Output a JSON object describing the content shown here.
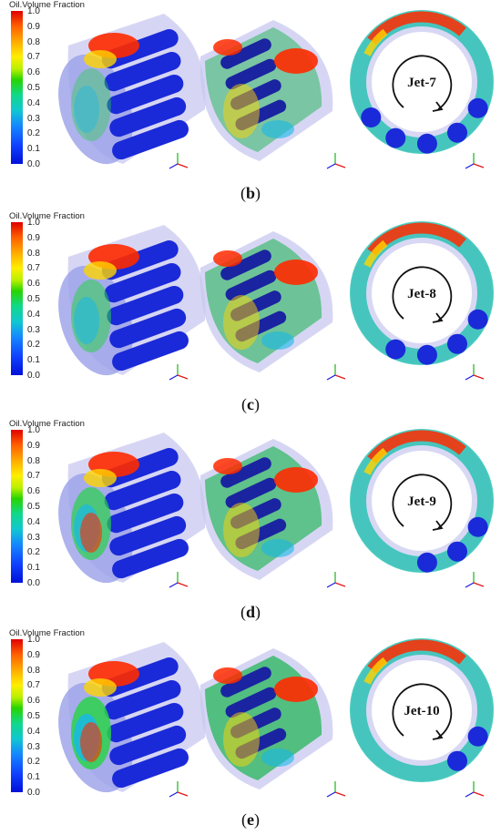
{
  "colorbar": {
    "title": "Oil.Volume Fraction",
    "ticks": [
      "1.0",
      "0.9",
      "0.8",
      "0.7",
      "0.6",
      "0.5",
      "0.4",
      "0.3",
      "0.2",
      "0.1",
      "0.0"
    ]
  },
  "panels": [
    {
      "jet_label": "Jet-7",
      "caption_letter": "b"
    },
    {
      "jet_label": "Jet-8",
      "caption_letter": "c"
    },
    {
      "jet_label": "Jet-9",
      "caption_letter": "d"
    },
    {
      "jet_label": "Jet-10",
      "caption_letter": "e"
    }
  ],
  "colors": {
    "housing": "#c8c8f0",
    "roller": "#1a2ad8",
    "hot": "#ff2a00",
    "warm": "#ffd400",
    "mid": "#2ad24a",
    "cool": "#18b8e8"
  }
}
